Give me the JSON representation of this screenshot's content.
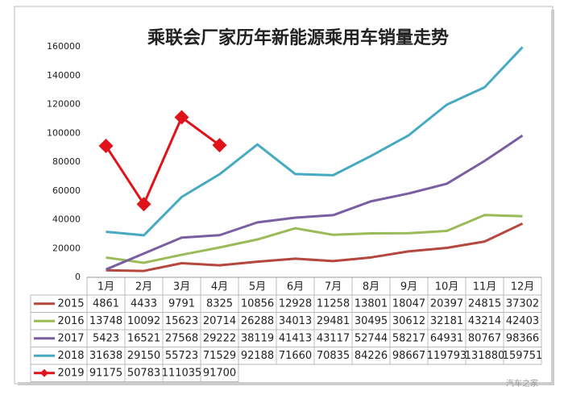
{
  "chart_data": {
    "type": "line",
    "title": "乘联会厂家历年新能源乘用车销量走势",
    "categories": [
      "1月",
      "2月",
      "3月",
      "4月",
      "5月",
      "6月",
      "7月",
      "8月",
      "9月",
      "10月",
      "11月",
      "12月"
    ],
    "series": [
      {
        "name": "2015",
        "color": "#b5473f",
        "values": [
          4861,
          4433,
          9791,
          8325,
          10856,
          12928,
          11258,
          13801,
          18047,
          20397,
          24815,
          37302
        ]
      },
      {
        "name": "2016",
        "color": "#9bbb59",
        "values": [
          13748,
          10092,
          15623,
          20714,
          26288,
          34013,
          29481,
          30495,
          30612,
          32181,
          43214,
          42403
        ]
      },
      {
        "name": "2017",
        "color": "#7a5fa0",
        "values": [
          5423,
          16521,
          27568,
          29222,
          38119,
          41413,
          43117,
          52744,
          58217,
          64931,
          80767,
          98366
        ]
      },
      {
        "name": "2018",
        "color": "#46aac2",
        "values": [
          31638,
          29150,
          55723,
          71529,
          92188,
          71660,
          70835,
          84226,
          98667,
          119793,
          131880,
          159751
        ]
      },
      {
        "name": "2019",
        "color": "#e0121a",
        "marker": "diamond",
        "values": [
          91175,
          50783,
          111035,
          91700,
          null,
          null,
          null,
          null,
          null,
          null,
          null,
          null
        ]
      }
    ],
    "ylim": [
      0,
      160000
    ],
    "yticks": [
      0,
      20000,
      40000,
      60000,
      80000,
      100000,
      120000,
      140000,
      160000
    ],
    "grid": false,
    "watermark": "汽车之家"
  }
}
